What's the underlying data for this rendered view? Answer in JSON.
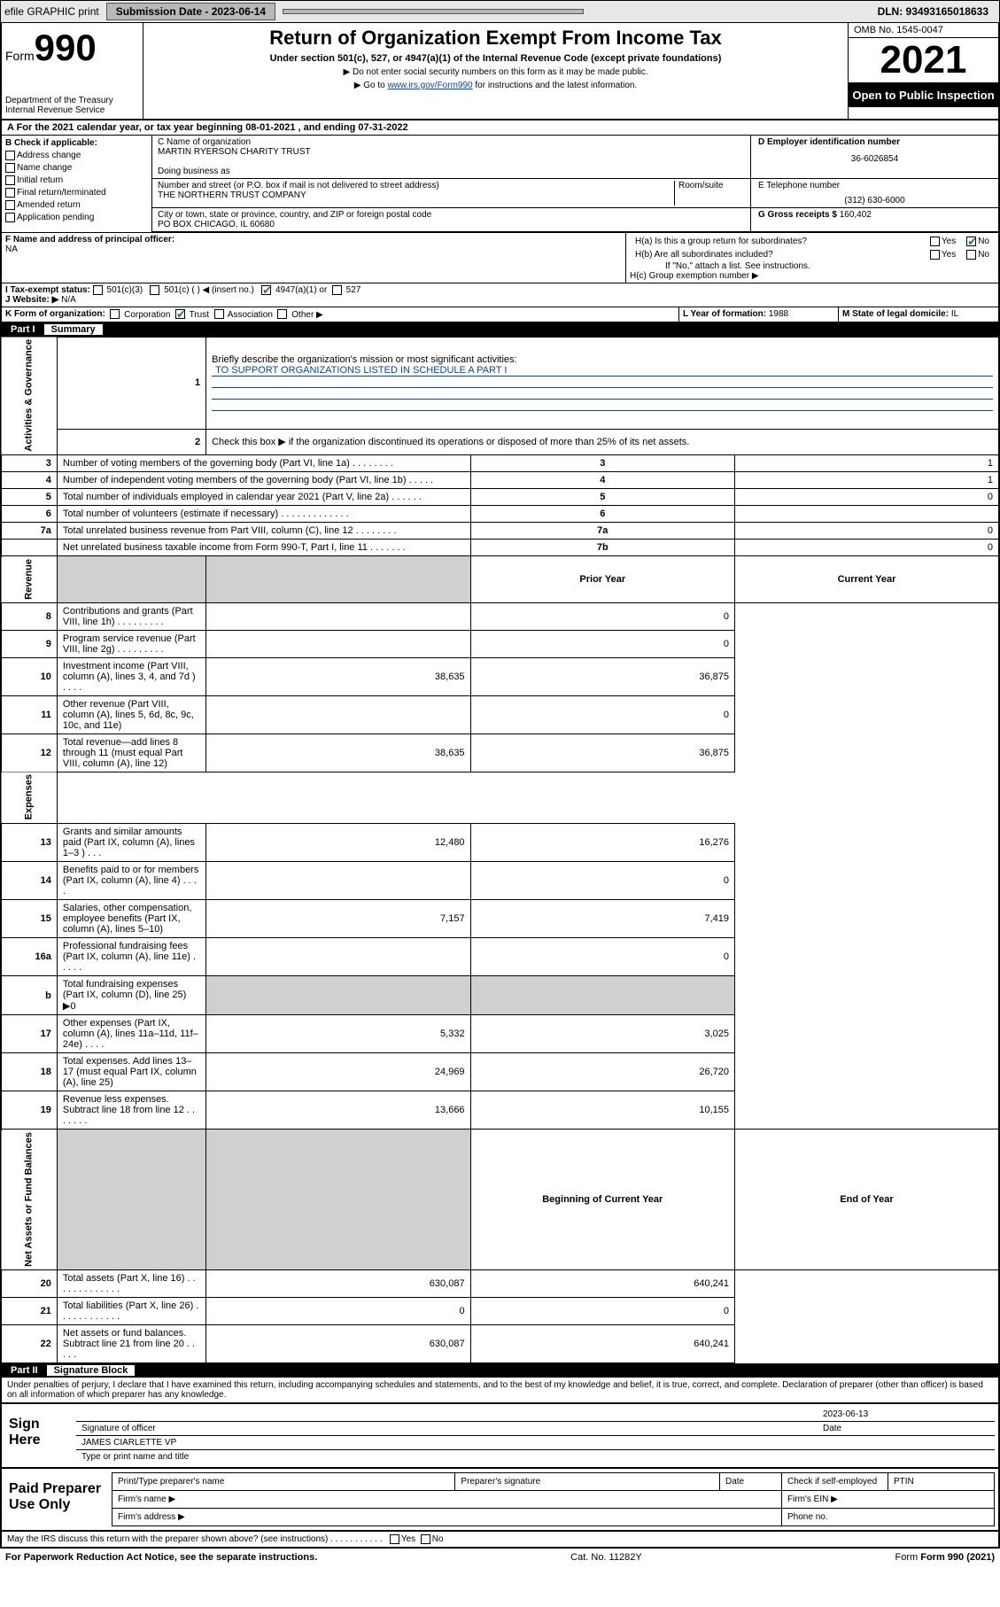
{
  "topbar": {
    "efile": "efile GRAPHIC print",
    "submission_label": "Submission Date - 2023-06-14",
    "dln": "DLN: 93493165018633"
  },
  "header": {
    "form_prefix": "Form",
    "form_number": "990",
    "dept": "Department of the Treasury Internal Revenue Service",
    "title": "Return of Organization Exempt From Income Tax",
    "subtitle": "Under section 501(c), 527, or 4947(a)(1) of the Internal Revenue Code (except private foundations)",
    "note1": "▶ Do not enter social security numbers on this form as it may be made public.",
    "note2_pre": "▶ Go to ",
    "note2_link": "www.irs.gov/Form990",
    "note2_post": " for instructions and the latest information.",
    "omb": "OMB No. 1545-0047",
    "year": "2021",
    "open": "Open to Public Inspection"
  },
  "period": "A For the 2021 calendar year, or tax year beginning 08-01-2021  , and ending 07-31-2022",
  "block_b": {
    "label": "B Check if applicable:",
    "opts": [
      "Address change",
      "Name change",
      "Initial return",
      "Final return/terminated",
      "Amended return",
      "Application pending"
    ]
  },
  "block_c": {
    "name_label": "C Name of organization",
    "name": "MARTIN RYERSON CHARITY TRUST",
    "dba_label": "Doing business as",
    "dba": "",
    "addr_label": "Number and street (or P.O. box if mail is not delivered to street address)",
    "addr": "THE NORTHERN TRUST COMPANY",
    "room_label": "Room/suite",
    "city_label": "City or town, state or province, country, and ZIP or foreign postal code",
    "city": "PO BOX CHICAGO, IL  60680"
  },
  "block_d": {
    "label": "D Employer identification number",
    "value": "36-6026854"
  },
  "block_e": {
    "label": "E Telephone number",
    "value": "(312) 630-6000"
  },
  "block_g": {
    "label": "G Gross receipts $ ",
    "value": "160,402"
  },
  "block_f": {
    "label": "F  Name and address of principal officer:",
    "value": "NA"
  },
  "block_h": {
    "a": "H(a)  Is this a group return for subordinates?",
    "b": "H(b)  Are all subordinates included?",
    "b_note": "If \"No,\" attach a list. See instructions.",
    "c": "H(c)  Group exemption number ▶",
    "yes": "Yes",
    "no": "No"
  },
  "block_i": {
    "label": "I  Tax-exempt status:",
    "o1": "501(c)(3)",
    "o2": "501(c) (  ) ◀ (insert no.)",
    "o3": "4947(a)(1) or",
    "o4": "527"
  },
  "block_j": {
    "label": "J  Website: ▶",
    "value": "N/A"
  },
  "block_k": {
    "label": "K Form of organization:",
    "opts": [
      "Corporation",
      "Trust",
      "Association",
      "Other ▶"
    ]
  },
  "block_l": {
    "label": "L Year of formation: ",
    "value": "1988"
  },
  "block_m": {
    "label": "M State of legal domicile: ",
    "value": "IL"
  },
  "part1": {
    "partno": "Part I",
    "title": "Summary"
  },
  "summary": {
    "side_labels": [
      "Activities & Governance",
      "Revenue",
      "Expenses",
      "Net Assets or Fund Balances"
    ],
    "line1_label": "Briefly describe the organization's mission or most significant activities:",
    "line1_value": "TO SUPPORT ORGANIZATIONS LISTED IN SCHEDULE A PART I",
    "line2": "Check this box ▶  if the organization discontinued its operations or disposed of more than 25% of its net assets.",
    "lines_gov": [
      {
        "n": "3",
        "desc": "Number of voting members of the governing body (Part VI, line 1a)   .    .    .    .    .    .    .    .",
        "code": "3",
        "cur": "1"
      },
      {
        "n": "4",
        "desc": "Number of independent voting members of the governing body (Part VI, line 1b)   .    .    .    .    .",
        "code": "4",
        "cur": "1"
      },
      {
        "n": "5",
        "desc": "Total number of individuals employed in calendar year 2021 (Part V, line 2a)   .    .    .    .    .    .",
        "code": "5",
        "cur": "0"
      },
      {
        "n": "6",
        "desc": "Total number of volunteers (estimate if necessary)   .    .    .    .    .    .    .    .    .    .    .    .    .",
        "code": "6",
        "cur": ""
      },
      {
        "n": "7a",
        "desc": "Total unrelated business revenue from Part VIII, column (C), line 12   .    .    .    .    .    .    .    .",
        "code": "7a",
        "cur": "0"
      },
      {
        "n": "",
        "desc": "Net unrelated business taxable income from Form 990-T, Part I, line 11   .    .    .    .    .    .    .",
        "code": "7b",
        "cur": "0"
      }
    ],
    "col_prior": "Prior Year",
    "col_current": "Current Year",
    "lines_rev": [
      {
        "n": "8",
        "desc": "Contributions and grants (Part VIII, line 1h)   .    .    .    .    .    .    .    .    .",
        "prior": "",
        "cur": "0"
      },
      {
        "n": "9",
        "desc": "Program service revenue (Part VIII, line 2g)   .    .    .    .    .    .    .    .    .",
        "prior": "",
        "cur": "0"
      },
      {
        "n": "10",
        "desc": "Investment income (Part VIII, column (A), lines 3, 4, and 7d )   .    .    .    .",
        "prior": "38,635",
        "cur": "36,875"
      },
      {
        "n": "11",
        "desc": "Other revenue (Part VIII, column (A), lines 5, 6d, 8c, 9c, 10c, and 11e)",
        "prior": "",
        "cur": "0"
      },
      {
        "n": "12",
        "desc": "Total revenue—add lines 8 through 11 (must equal Part VIII, column (A), line 12)",
        "prior": "38,635",
        "cur": "36,875"
      }
    ],
    "lines_exp": [
      {
        "n": "13",
        "desc": "Grants and similar amounts paid (Part IX, column (A), lines 1–3 )   .    .    .",
        "prior": "12,480",
        "cur": "16,276"
      },
      {
        "n": "14",
        "desc": "Benefits paid to or for members (Part IX, column (A), line 4)   .    .    .    .",
        "prior": "",
        "cur": "0"
      },
      {
        "n": "15",
        "desc": "Salaries, other compensation, employee benefits (Part IX, column (A), lines 5–10)",
        "prior": "7,157",
        "cur": "7,419"
      },
      {
        "n": "16a",
        "desc": "Professional fundraising fees (Part IX, column (A), line 11e)   .    .    .    .    .",
        "prior": "",
        "cur": "0"
      },
      {
        "n": "b",
        "desc": "Total fundraising expenses (Part IX, column (D), line 25) ▶0",
        "prior": "",
        "cur": "",
        "shaded": true
      },
      {
        "n": "17",
        "desc": "Other expenses (Part IX, column (A), lines 11a–11d, 11f–24e)   .    .    .    .",
        "prior": "5,332",
        "cur": "3,025"
      },
      {
        "n": "18",
        "desc": "Total expenses. Add lines 13–17 (must equal Part IX, column (A), line 25)",
        "prior": "24,969",
        "cur": "26,720"
      },
      {
        "n": "19",
        "desc": "Revenue less expenses. Subtract line 18 from line 12   .    .    .    .    .    .    .",
        "prior": "13,666",
        "cur": "10,155"
      }
    ],
    "col_begin": "Beginning of Current Year",
    "col_end": "End of Year",
    "lines_net": [
      {
        "n": "20",
        "desc": "Total assets (Part X, line 16)   .    .    .    .    .    .    .    .    .    .    .    .    .",
        "prior": "630,087",
        "cur": "640,241"
      },
      {
        "n": "21",
        "desc": "Total liabilities (Part X, line 26)   .    .    .    .    .    .    .    .    .    .    .    .",
        "prior": "0",
        "cur": "0"
      },
      {
        "n": "22",
        "desc": "Net assets or fund balances. Subtract line 21 from line 20   .    .    .    .    .",
        "prior": "630,087",
        "cur": "640,241"
      }
    ]
  },
  "part2": {
    "partno": "Part II",
    "title": "Signature Block"
  },
  "penalties": "Under penalties of perjury, I declare that I have examined this return, including accompanying schedules and statements, and to the best of my knowledge and belief, it is true, correct, and complete. Declaration of preparer (other than officer) is based on all information of which preparer has any knowledge.",
  "sign": {
    "here": "Sign Here",
    "sig_label": "Signature of officer",
    "date": "2023-06-13",
    "date_label": "Date",
    "name": "JAMES CIARLETTE  VP",
    "name_label": "Type or print name and title"
  },
  "paid": {
    "label": "Paid Preparer Use Only",
    "cols": [
      "Print/Type preparer's name",
      "Preparer's signature",
      "Date",
      "Check      if self-employed",
      "PTIN"
    ],
    "firm_name": "Firm's name  ▶",
    "firm_ein": "Firm's EIN ▶",
    "firm_addr": "Firm's address ▶",
    "phone": "Phone no."
  },
  "disclose": "May the IRS discuss this return with the preparer shown above? (see instructions)   .    .    .    .    .    .    .    .    .    .    .",
  "footer": {
    "pra": "For Paperwork Reduction Act Notice, see the separate instructions.",
    "cat": "Cat. No. 11282Y",
    "form": "Form 990 (2021)"
  }
}
